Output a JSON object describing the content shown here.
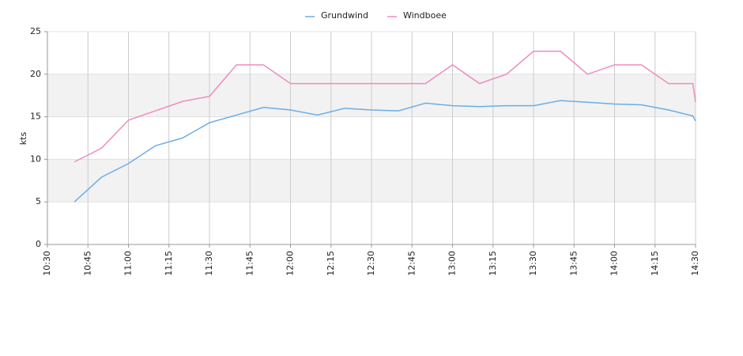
{
  "chart_data": {
    "type": "line",
    "y_label": "kts",
    "x": [
      "10:40",
      "10:50",
      "11:00",
      "11:10",
      "11:20",
      "11:30",
      "11:40",
      "11:50",
      "12:00",
      "12:10",
      "12:20",
      "12:30",
      "12:40",
      "12:50",
      "13:00",
      "13:10",
      "13:20",
      "13:30",
      "13:40",
      "13:50",
      "14:00",
      "14:10",
      "14:20",
      "14:29",
      "14:30"
    ],
    "series": [
      {
        "name": "Grundwind",
        "color": "#6aaee8",
        "values": [
          5,
          7.9,
          9.5,
          11.6,
          12.5,
          14.3,
          15.2,
          16.1,
          15.8,
          15.2,
          16.0,
          15.8,
          15.7,
          16.6,
          16.3,
          16.2,
          16.3,
          16.3,
          16.9,
          16.7,
          16.5,
          16.4,
          15.8,
          15.1,
          14.5
        ]
      },
      {
        "name": "Windboee",
        "color": "#ee8cc0",
        "values": [
          9.7,
          11.3,
          14.6,
          15.7,
          16.8,
          17.4,
          21.1,
          21.1,
          18.9,
          18.9,
          18.9,
          18.9,
          18.9,
          18.9,
          21.1,
          18.9,
          20.0,
          22.7,
          22.7,
          20.0,
          21.1,
          21.1,
          18.9,
          18.9,
          16.7
        ]
      }
    ],
    "xlim": [
      "10:30",
      "14:30"
    ],
    "xticks": [
      "10:30",
      "10:45",
      "11:00",
      "11:15",
      "11:30",
      "11:45",
      "12:00",
      "12:15",
      "12:30",
      "12:45",
      "13:00",
      "13:15",
      "13:30",
      "13:45",
      "14:00",
      "14:15",
      "14:30"
    ],
    "ylim": [
      0,
      25
    ],
    "yticks": [
      0,
      5,
      10,
      15,
      20,
      25
    ],
    "alternate_bands": true,
    "grid": true,
    "legend": "top"
  }
}
